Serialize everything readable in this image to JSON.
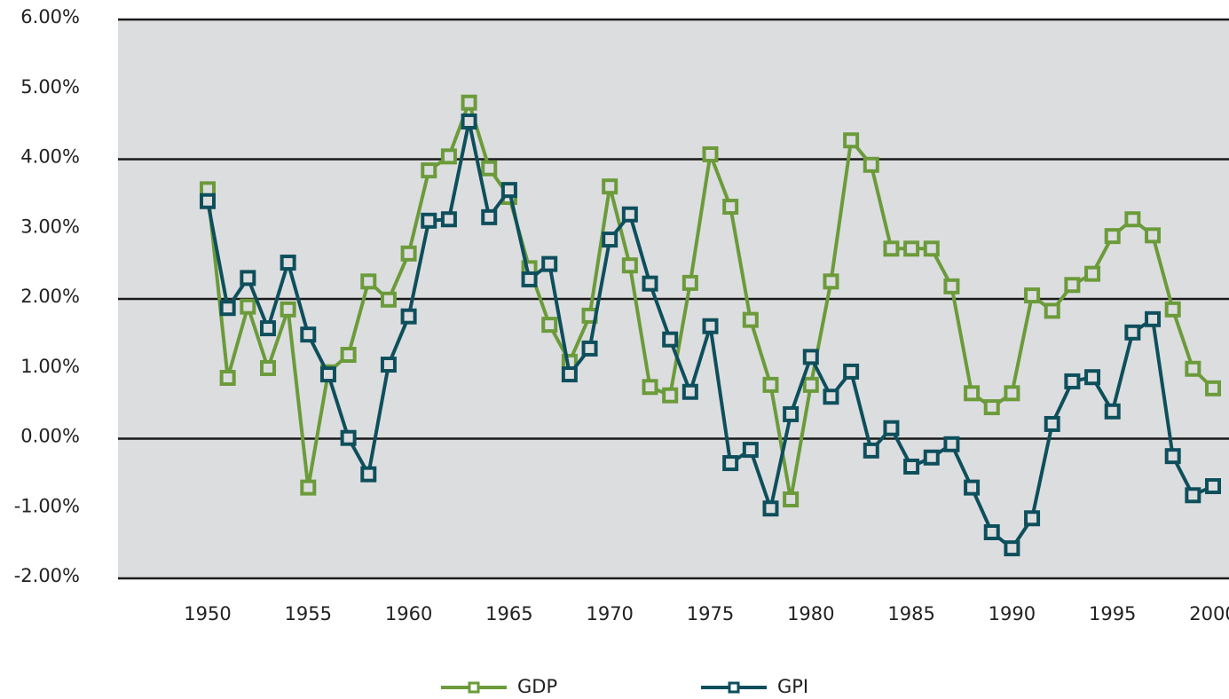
{
  "chart_data": {
    "type": "line",
    "x": [
      1950,
      1951,
      1952,
      1953,
      1954,
      1955,
      1956,
      1957,
      1958,
      1959,
      1960,
      1961,
      1962,
      1963,
      1964,
      1965,
      1966,
      1967,
      1968,
      1969,
      1970,
      1971,
      1972,
      1973,
      1974,
      1975,
      1976,
      1977,
      1978,
      1979,
      1980,
      1981,
      1982,
      1983,
      1984,
      1985,
      1986,
      1987,
      1988,
      1989,
      1990,
      1991,
      1992,
      1993,
      1994,
      1995,
      1996,
      1997,
      1998,
      1999,
      2000
    ],
    "series": [
      {
        "name": "GDP",
        "color": "#6b9b3a",
        "values": [
          3.57,
          0.87,
          1.89,
          1.01,
          1.85,
          -0.7,
          0.95,
          1.2,
          2.25,
          1.99,
          2.65,
          3.84,
          4.04,
          4.81,
          3.87,
          3.46,
          2.44,
          1.63,
          1.1,
          1.76,
          3.61,
          2.48,
          0.74,
          0.62,
          2.23,
          4.07,
          3.32,
          1.7,
          0.77,
          -0.87,
          0.77,
          2.25,
          4.27,
          3.92,
          2.72,
          2.72,
          2.72,
          2.18,
          0.65,
          0.45,
          0.65,
          2.05,
          1.83,
          2.2,
          2.36,
          2.9,
          3.14,
          2.91,
          1.85,
          1.0,
          0.72
        ]
      },
      {
        "name": "GPI",
        "color": "#0e4f5c",
        "values": [
          3.4,
          1.87,
          2.3,
          1.58,
          2.52,
          1.49,
          0.92,
          0.01,
          -0.51,
          1.06,
          1.75,
          3.12,
          3.14,
          4.54,
          3.17,
          3.56,
          2.28,
          2.5,
          0.92,
          1.29,
          2.85,
          3.21,
          2.22,
          1.42,
          0.67,
          1.61,
          -0.35,
          -0.16,
          -1.0,
          0.35,
          1.17,
          0.6,
          0.96,
          -0.17,
          0.15,
          -0.4,
          -0.27,
          -0.08,
          -0.7,
          -1.34,
          -1.57,
          -1.14,
          0.21,
          0.82,
          0.88,
          0.39,
          1.52,
          1.71,
          -0.25,
          -0.81,
          -0.68
        ]
      }
    ],
    "xlim": [
      1950,
      2000
    ],
    "xticks": [
      1950,
      1955,
      1960,
      1965,
      1970,
      1975,
      1980,
      1985,
      1990,
      1995,
      2000
    ],
    "ylim": [
      -2,
      6
    ],
    "yticks": [
      {
        "value": -2,
        "label": "-2.00%"
      },
      {
        "value": -1,
        "label": "-1.00%"
      },
      {
        "value": 0,
        "label": "0.00%"
      },
      {
        "value": 1,
        "label": "1.00%"
      },
      {
        "value": 2,
        "label": "2.00%"
      },
      {
        "value": 3,
        "label": "3.00%"
      },
      {
        "value": 4,
        "label": "4.00%"
      },
      {
        "value": 5,
        "label": "5.00%"
      },
      {
        "value": 6,
        "label": "6.00%"
      }
    ],
    "grid": true,
    "legend": "bottom"
  }
}
